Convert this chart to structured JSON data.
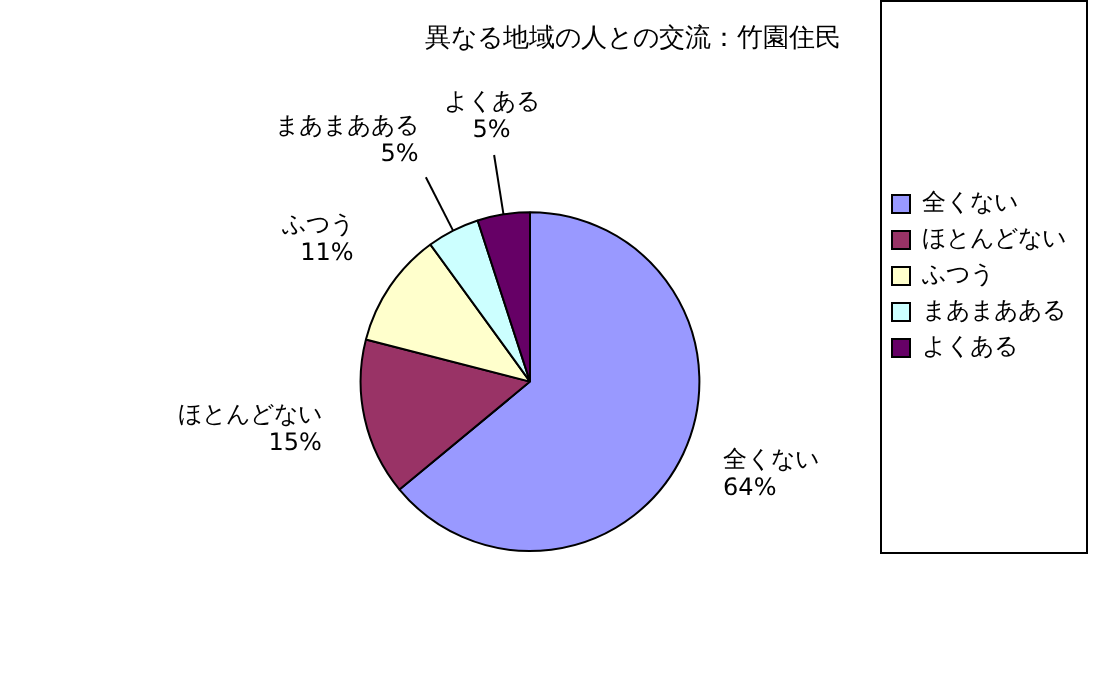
{
  "chart_data": {
    "type": "pie",
    "title": "異なる地域の人との交流：竹園住民",
    "categories": [
      "全くない",
      "ほとんどない",
      "ふつう",
      "まあまあある",
      "よくある"
    ],
    "values": [
      64,
      15,
      11,
      5,
      5
    ],
    "value_labels": [
      "64%",
      "15%",
      "11%",
      "5%",
      "5%"
    ],
    "colors": [
      "#9999ff",
      "#993366",
      "#ffffcc",
      "#ccffff",
      "#660066"
    ],
    "legend": "right"
  }
}
